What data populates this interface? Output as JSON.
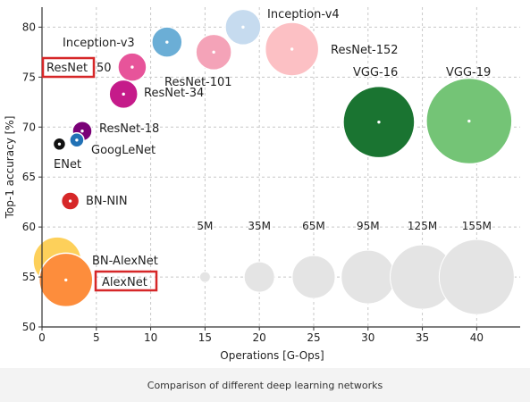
{
  "chart_data": {
    "type": "scatter",
    "title": "",
    "xlabel": "Operations [G-Ops]",
    "ylabel": "Top-1 accuracy [%]",
    "xlim": [
      0,
      44
    ],
    "ylim": [
      50,
      82
    ],
    "xticks": [
      0,
      5,
      10,
      15,
      20,
      25,
      30,
      35,
      40
    ],
    "yticks": [
      50,
      55,
      60,
      65,
      70,
      75,
      80
    ],
    "grid": true,
    "grid_style": "dashed",
    "points": [
      {
        "name": "Inception-v4",
        "x": 18.5,
        "y": 80.0,
        "color": "#c6dbef"
      },
      {
        "name": "Inception-v3",
        "x": 11.5,
        "y": 78.5,
        "color": "#6baed6"
      },
      {
        "name": "ResNet-101",
        "x": 15.8,
        "y": 77.5,
        "color": "#f4a3b8"
      },
      {
        "name": "ResNet-152",
        "x": 23.0,
        "y": 77.8,
        "color": "#fcc0c4"
      },
      {
        "name": "ResNet-50",
        "x": 8.3,
        "y": 76.0,
        "color": "#e7549a"
      },
      {
        "name": "ResNet-34",
        "x": 7.5,
        "y": 73.3,
        "color": "#c51b8a"
      },
      {
        "name": "VGG-16",
        "x": 31.0,
        "y": 70.5,
        "color": "#1a7431"
      },
      {
        "name": "VGG-19",
        "x": 39.3,
        "y": 70.6,
        "color": "#74c476"
      },
      {
        "name": "ResNet-18",
        "x": 3.7,
        "y": 69.6,
        "color": "#7a0177"
      },
      {
        "name": "GoogLeNet",
        "x": 3.2,
        "y": 68.7,
        "color": "#2171b5"
      },
      {
        "name": "ENet",
        "x": 1.6,
        "y": 68.3,
        "color": "#111111"
      },
      {
        "name": "BN-NIN",
        "x": 2.6,
        "y": 62.6,
        "color": "#d62728"
      },
      {
        "name": "BN-AlexNet",
        "x": 1.4,
        "y": 56.6,
        "color": "#fdd05a"
      },
      {
        "name": "AlexNet",
        "x": 2.2,
        "y": 54.7,
        "color": "#fd8d3c"
      }
    ],
    "size_legend": [
      {
        "label": "5M",
        "x": 15.0,
        "y": 55
      },
      {
        "label": "35M",
        "x": 20.0,
        "y": 55
      },
      {
        "label": "65M",
        "x": 25.0,
        "y": 55
      },
      {
        "label": "95M",
        "x": 30.0,
        "y": 55
      },
      {
        "label": "125M",
        "x": 35.0,
        "y": 55
      },
      {
        "label": "155M",
        "x": 40.0,
        "y": 55
      }
    ],
    "highlighted": [
      "ResNet",
      "AlexNet"
    ],
    "highlight_color": "#d62728"
  },
  "labels": {
    "resnet_50_prefix": "ResNet",
    "resnet_50_suffix": "50"
  },
  "caption": "Comparison of different deep learning networks"
}
